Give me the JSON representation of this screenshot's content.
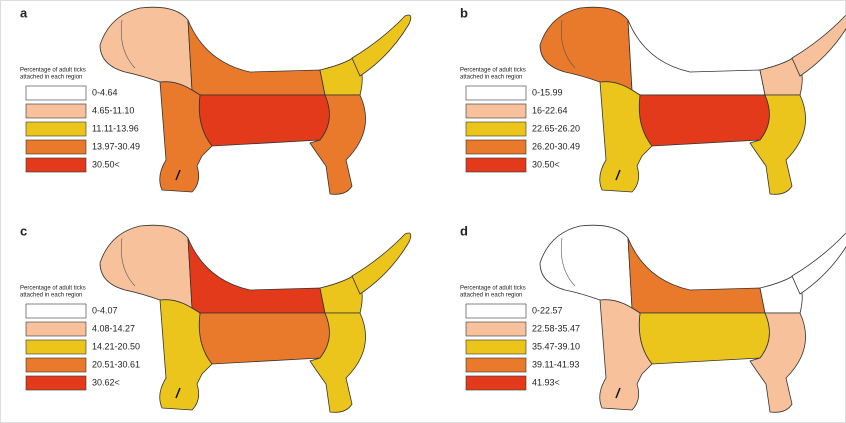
{
  "panels": [
    {
      "label": "a",
      "legend_title": [
        "Percentage of adult ticks",
        "attached in each region"
      ],
      "legend": [
        {
          "label": "0-4.64",
          "color": "#ffffff"
        },
        {
          "label": "4.65-11.10",
          "color": "#f6c19b"
        },
        {
          "label": "11.11-13.96",
          "color": "#ecc51c"
        },
        {
          "label": "13.97-30.49",
          "color": "#ea7a2b"
        },
        {
          "label": "30.50<",
          "color": "#e43a1c"
        }
      ],
      "regions": [
        "#f6c19b",
        "#ea7a2b",
        "#ecc51c",
        "#ecc51c",
        "#e43a1c",
        "#ea7a2b",
        "#ea7a2b"
      ]
    },
    {
      "label": "b",
      "legend_title": [
        "Percentage of adult ticks",
        "attached in each region"
      ],
      "legend": [
        {
          "label": "0-15.99",
          "color": "#ffffff"
        },
        {
          "label": "16-22.64",
          "color": "#f6c19b"
        },
        {
          "label": "22.65-26.20",
          "color": "#ecc51c"
        },
        {
          "label": "26.20-30.49",
          "color": "#ea7a2b"
        },
        {
          "label": "30.50<",
          "color": "#e43a1c"
        }
      ],
      "regions": [
        "#ea7a2b",
        "#ffffff",
        "#f6c19b",
        "#f6c19b",
        "#e43a1c",
        "#ecc51c",
        "#ecc51c"
      ]
    },
    {
      "label": "c",
      "legend_title": [
        "Percentage of adult ticks",
        "attached in each region"
      ],
      "legend": [
        {
          "label": "0-4.07",
          "color": "#ffffff"
        },
        {
          "label": "4.08-14.27",
          "color": "#f6c19b"
        },
        {
          "label": "14.21-20.50",
          "color": "#ecc51c"
        },
        {
          "label": "20.51-30.61",
          "color": "#ea7a2b"
        },
        {
          "label": "30.62<",
          "color": "#e43a1c"
        }
      ],
      "regions": [
        "#f6c19b",
        "#e43a1c",
        "#ecc51c",
        "#ecc51c",
        "#ea7a2b",
        "#ecc51c",
        "#ecc51c"
      ]
    },
    {
      "label": "d",
      "legend_title": [
        "Percentage of adult ticks",
        "attached in each region"
      ],
      "legend": [
        {
          "label": "0-22.57",
          "color": "#ffffff"
        },
        {
          "label": "22.58-35.47",
          "color": "#f6c19b"
        },
        {
          "label": "35.47-39.10",
          "color": "#ecc51c"
        },
        {
          "label": "39.11-41.93",
          "color": "#ea7a2b"
        },
        {
          "label": "41.93<",
          "color": "#e43a1c"
        }
      ],
      "regions": [
        "#ffffff",
        "#ea7a2b",
        "#ffffff",
        "#ffffff",
        "#ecc51c",
        "#f6c19b",
        "#f6c19b"
      ]
    }
  ]
}
